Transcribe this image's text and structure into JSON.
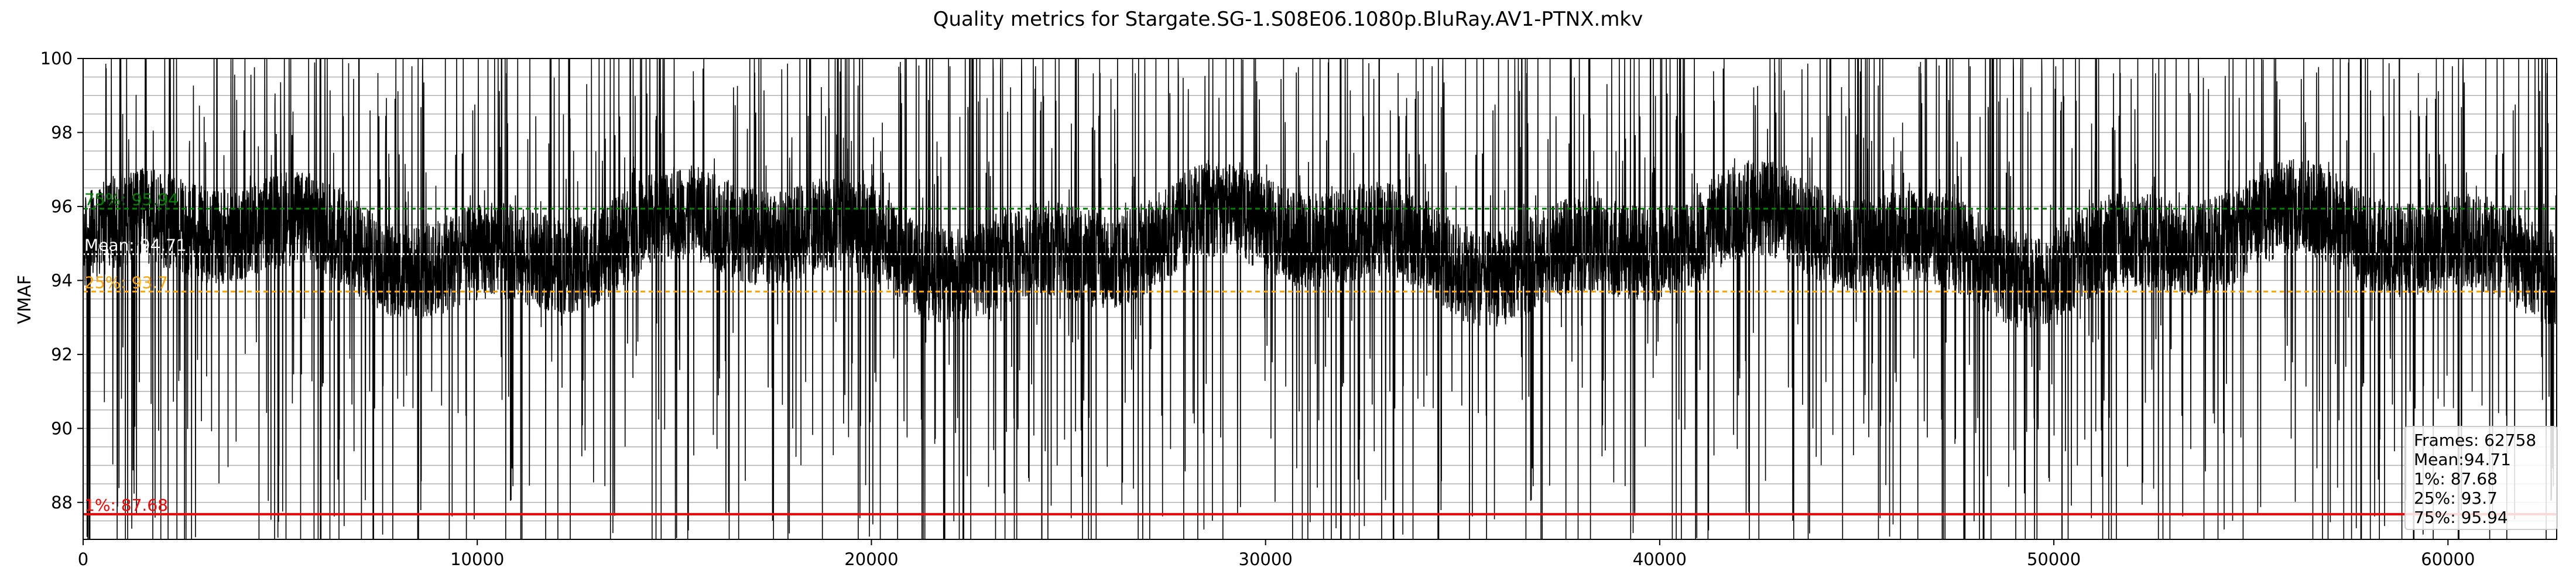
{
  "chart_data": {
    "type": "line",
    "title": "Quality metrics for Stargate.SG-1.S08E06.1080p.BluRay.AV1-PTNX.mkv",
    "xlabel": "",
    "ylabel": "VMAF",
    "xlim": [
      0,
      62758
    ],
    "ylim": [
      87,
      100
    ],
    "x_ticks": [
      0,
      10000,
      20000,
      30000,
      40000,
      50000,
      60000
    ],
    "x_tick_labels": [
      "0",
      "10000",
      "20000",
      "30000",
      "40000",
      "50000",
      "60000"
    ],
    "y_ticks": [
      88,
      90,
      92,
      94,
      96,
      98,
      100
    ],
    "y_tick_labels": [
      "88",
      "90",
      "92",
      "94",
      "96",
      "98",
      "100"
    ],
    "grid": true,
    "series": [
      {
        "color": "#000000",
        "frame_count": 62758,
        "typical_range": [
          93.5,
          96.5
        ],
        "min_visible": 87,
        "max_visible": 100
      }
    ],
    "reference_lines": [
      {
        "label": "75%: 95.94",
        "value": 95.94,
        "color": "#008000",
        "style": "dashed"
      },
      {
        "label": "Mean: 94.71",
        "value": 94.71,
        "color": "#ffffff",
        "style": "dotted"
      },
      {
        "label": "25%: 93.7",
        "value": 93.7,
        "color": "#ffa500",
        "style": "dashed"
      },
      {
        "label": "1%: 87.68",
        "value": 87.68,
        "color": "#ff0000",
        "style": "solid"
      }
    ],
    "stats_box": {
      "lines": [
        "Frames: 62758",
        "Mean:94.71",
        "1%: 87.68",
        "25%: 93.7",
        "75%: 95.94"
      ],
      "placement": "bottom-right"
    }
  }
}
